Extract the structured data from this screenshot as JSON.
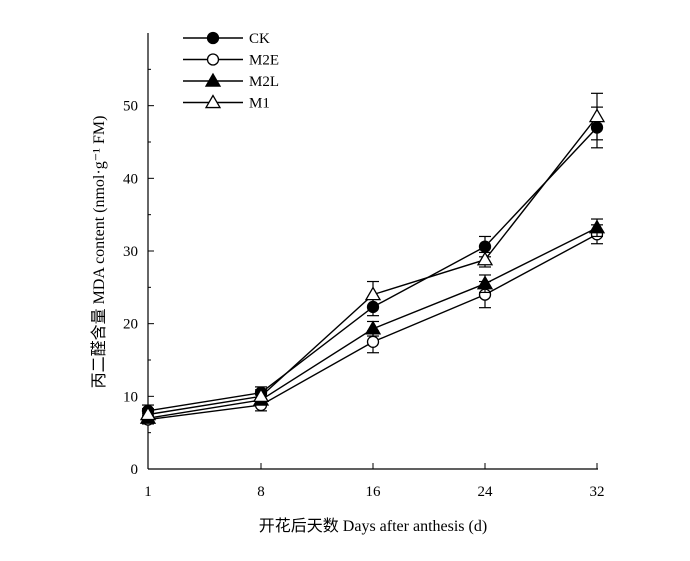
{
  "chart_data": {
    "type": "line",
    "xlabel": "开花后天数 Days after anthesis (d)",
    "ylabel": "丙二醛含量 MDA content (nmol·g⁻¹ FM)",
    "categories": [
      "1",
      "8",
      "16",
      "24",
      "32"
    ],
    "ylim": [
      0,
      60
    ],
    "yticks": [
      0,
      10,
      20,
      30,
      40,
      50
    ],
    "grid": false,
    "legend_position": "top-left",
    "series": [
      {
        "name": "CK",
        "marker": "filled-circle",
        "values": [
          8.0,
          10.5,
          22.3,
          30.6,
          47.0
        ],
        "errors": [
          0.8,
          0.8,
          1.2,
          1.4,
          2.8
        ]
      },
      {
        "name": "M2E",
        "marker": "open-circle",
        "values": [
          6.8,
          8.8,
          17.5,
          24.0,
          32.3
        ],
        "errors": [
          0.6,
          0.8,
          1.5,
          1.8,
          1.3
        ]
      },
      {
        "name": "M2L",
        "marker": "filled-triangle",
        "values": [
          7.0,
          9.5,
          19.3,
          25.5,
          33.2
        ],
        "errors": [
          0.6,
          0.7,
          1.0,
          1.2,
          1.2
        ]
      },
      {
        "name": "M1",
        "marker": "open-triangle",
        "values": [
          7.5,
          10.0,
          24.0,
          28.8,
          48.5
        ],
        "errors": [
          0.8,
          0.9,
          1.8,
          1.0,
          3.2
        ]
      }
    ]
  }
}
